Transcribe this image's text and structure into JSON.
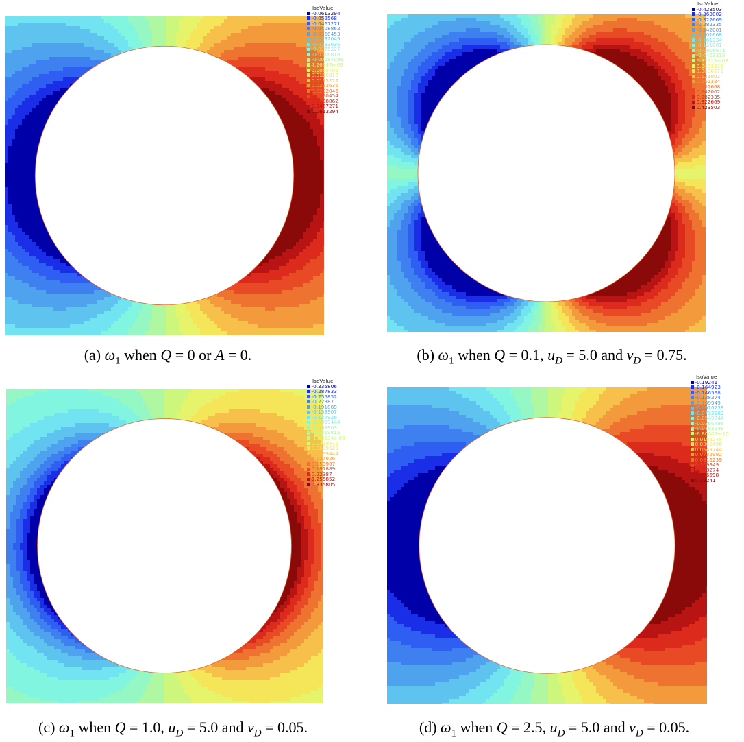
{
  "legend_title": "IsoValue",
  "panels": [
    {
      "id": "a",
      "values": [
        "-0.0613294",
        "-0.052568",
        "-0.0467271",
        "-0.0408862",
        "-0.0350453",
        "-0.0292045",
        "-0.0233636",
        "-0.0175227",
        "-0.0116818",
        "-0.00584089",
        "4.26347e-09",
        "0.0058409",
        "0.0116818",
        "0.0175227",
        "0.0233636",
        "0.0292045",
        "0.0350454",
        "0.0408862",
        "0.0467271",
        "0.0613294"
      ],
      "caption": {
        "label": "(a)",
        "symbol": "ω",
        "sub": "1",
        "rest": " when Q = 0 or A = 0."
      },
      "pattern": "dipole-horizontal"
    },
    {
      "id": "b",
      "values": [
        "-0.423503",
        "-0.363002",
        "-0.322669",
        "-0.282335",
        "-0.242001",
        "-0.201668",
        "-0.161334",
        "-0.121001",
        "-0.0806671",
        "-0.0403335",
        "6.37212e-08",
        "0.0403336",
        "0.0806672",
        "0.121001",
        "0.161334",
        "0.201668",
        "0.242002",
        "0.282335",
        "0.322669",
        "0.423503"
      ],
      "caption": {
        "label": "(b)",
        "symbol": "ω",
        "sub": "1",
        "rest": " when Q = 0.1, u_D = 5.0 and v_D = 0.75."
      },
      "pattern": "quadrupole"
    },
    {
      "id": "c",
      "values": [
        "-0.335806",
        "-0.287833",
        "-0.255852",
        "-0.22387",
        "-0.191889",
        "-0.159907",
        "-0.127926",
        "-0.0959444",
        "-0.063963",
        "-0.0319815",
        "-1.43334e-08",
        "0.0319815",
        "0.0639629",
        "0.0959444",
        "0.127926",
        "0.159907",
        "0.191889",
        "0.22387",
        "0.255852",
        "0.335805"
      ],
      "caption": {
        "label": "(c)",
        "symbol": "ω",
        "sub": "1",
        "rest": " when Q = 1.0, u_D = 5.0 and v_D = 0.05."
      },
      "pattern": "dipole-weak"
    },
    {
      "id": "d",
      "values": [
        "-0.19241",
        "-0.164923",
        "-0.146598",
        "-0.128274",
        "-0.109949",
        "-0.0916239",
        "-0.0732992",
        "-0.0549744",
        "-0.0366496",
        "-0.0183248",
        "-6.80007e-10",
        "0.0183248",
        "0.0366496",
        "0.0549744",
        "0.0732992",
        "0.0916239",
        "0.109949",
        "0.128274",
        "0.146598",
        "0.19241"
      ],
      "caption": {
        "label": "(d)",
        "symbol": "ω",
        "sub": "1",
        "rest": " when Q = 2.5, u_D = 5.0 and v_D = 0.05."
      },
      "pattern": "dipole-strong"
    }
  ],
  "colormap": [
    "#0000a8",
    "#1a2ee8",
    "#2f5ef2",
    "#3f80f0",
    "#4ea2ee",
    "#5ec3ee",
    "#72e3f0",
    "#82f5e0",
    "#95f7c4",
    "#b0f7a2",
    "#cdf77c",
    "#e5f46a",
    "#f5e659",
    "#f7c04a",
    "#f39a3c",
    "#ee7330",
    "#e84a26",
    "#dc2a1c",
    "#b81414",
    "#8a0a0a"
  ]
}
